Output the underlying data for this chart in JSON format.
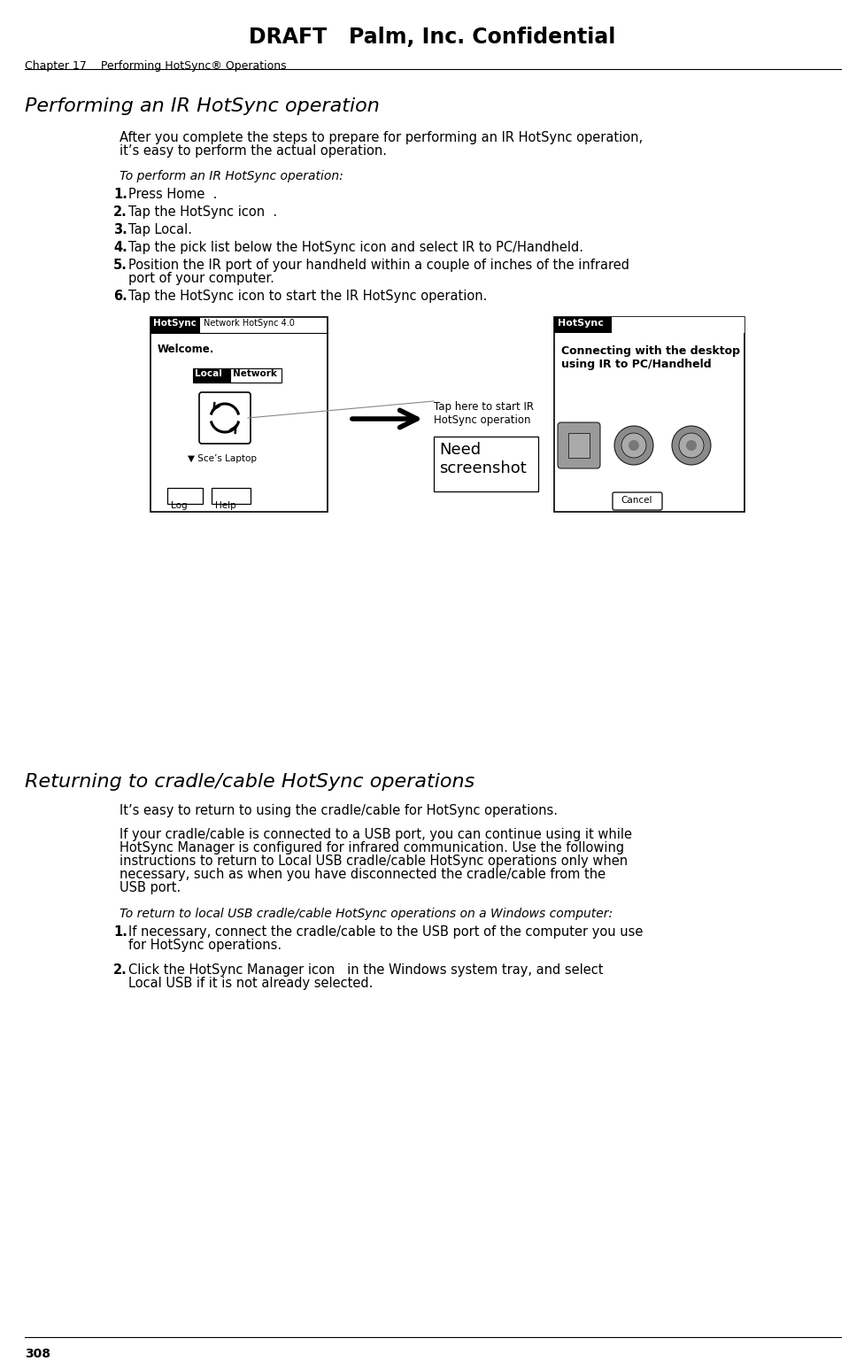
{
  "bg_color": "#ffffff",
  "header_title": "DRAFT   Palm, Inc. Confidential",
  "chapter_line": "Chapter 17    Performing HotSync® Operations",
  "section1_title": "Performing an IR HotSync operation",
  "section1_intro1": "After you complete the steps to prepare for performing an IR HotSync operation,",
  "section1_intro2": "it’s easy to perform the actual operation.",
  "section1_italic": "To perform an IR HotSync operation:",
  "section1_steps": [
    "Press Home  .",
    "Tap the HotSync icon  .",
    "Tap Local.",
    "Tap the pick list below the HotSync icon and select IR to PC/Handheld.",
    "Position the IR port of your handheld within a couple of inches of the infrared",
    "Tap the HotSync icon to start the IR HotSync operation."
  ],
  "step5_line2": "port of your computer.",
  "callout_text": "Tap here to start IR\nHotSync operation",
  "need_screenshot_text": "Need\nscreenshot",
  "section2_title": "Returning to cradle/cable HotSync operations",
  "section2_para1": "It’s easy to return to using the cradle/cable for HotSync operations.",
  "section2_para2a": "If your cradle/cable is connected to a USB port, you can continue using it while",
  "section2_para2b": "HotSync Manager is configured for infrared communication. Use the following",
  "section2_para2c": "instructions to return to Local USB cradle/cable HotSync operations only when",
  "section2_para2d": "necessary, such as when you have disconnected the cradle/cable from the",
  "section2_para2e": "USB port.",
  "section2_italic": "To return to local USB cradle/cable HotSync operations on a Windows computer:",
  "section2_step1a": "If necessary, connect the cradle/cable to the USB port of the computer you use",
  "section2_step1b": "for HotSync operations.",
  "section2_step2a": "Click the HotSync Manager icon   in the Windows system tray, and select",
  "section2_step2b": "Local USB if it is not already selected.",
  "footer_page": "308",
  "left_screen_hs": "HotSync",
  "left_screen_net": "Network HotSync 4.0",
  "left_screen_welcome": "Welcome.",
  "left_screen_laptop": "▼ Sce’s Laptop",
  "left_screen_log": "Log",
  "left_screen_help": "Help",
  "right_screen_hs": "HotSync",
  "right_screen_msg1": "Connecting with the desktop",
  "right_screen_msg2": "using IR to PC/Handheld",
  "right_screen_cancel": "Cancel"
}
